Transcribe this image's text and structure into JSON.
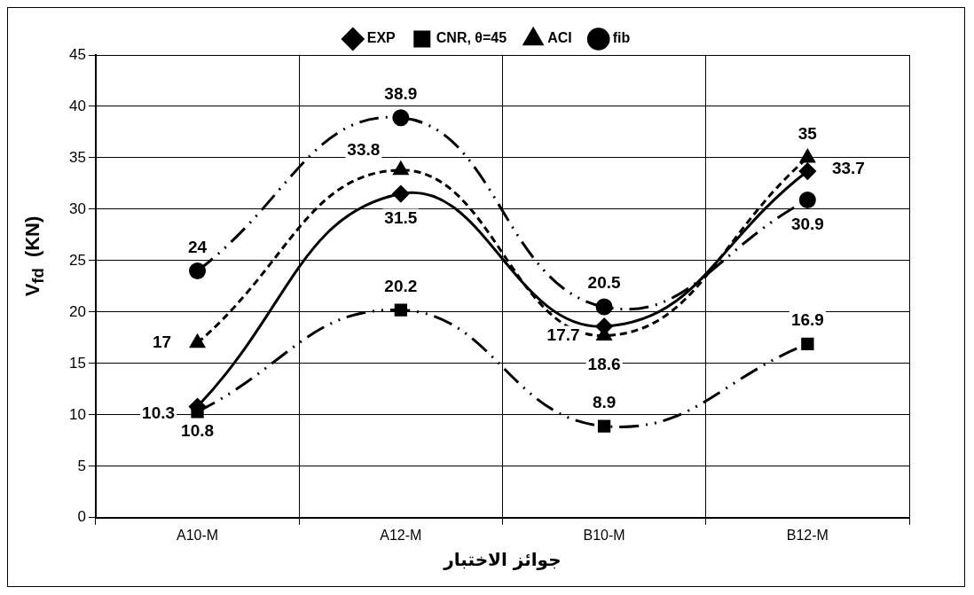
{
  "chart_data": {
    "type": "line",
    "xlabel": "جوائز الاختبار",
    "ylabel": "V$_{fd}$  (KN)",
    "categories": [
      "A10-M",
      "A12-M",
      "B10-M",
      "B12-M"
    ],
    "series": [
      {
        "name": "EXP",
        "color": "#000000",
        "values": [
          10.8,
          31.5,
          18.6,
          33.7
        ],
        "marker": "diamond",
        "line_style": "solid"
      },
      {
        "name": "CNR, θ=45",
        "color": "#000000",
        "values": [
          10.3,
          20.2,
          8.9,
          16.9
        ],
        "marker": "square",
        "line_style": "dashed"
      },
      {
        "name": "ACI",
        "color": "#000000",
        "values": [
          17,
          33.8,
          17.7,
          35
        ],
        "marker": "triangle",
        "line_style": "dashed"
      },
      {
        "name": "fib",
        "color": "#000000",
        "values": [
          24,
          38.9,
          20.5,
          30.9
        ],
        "marker": "circle",
        "line_style": "dashed"
      }
    ],
    "ylim": [
      0,
      45
    ],
    "yticks": [
      0,
      5,
      10,
      15,
      20,
      25,
      30,
      35,
      40,
      45
    ],
    "grid": true,
    "legend": "top",
    "data_labels": true
  }
}
